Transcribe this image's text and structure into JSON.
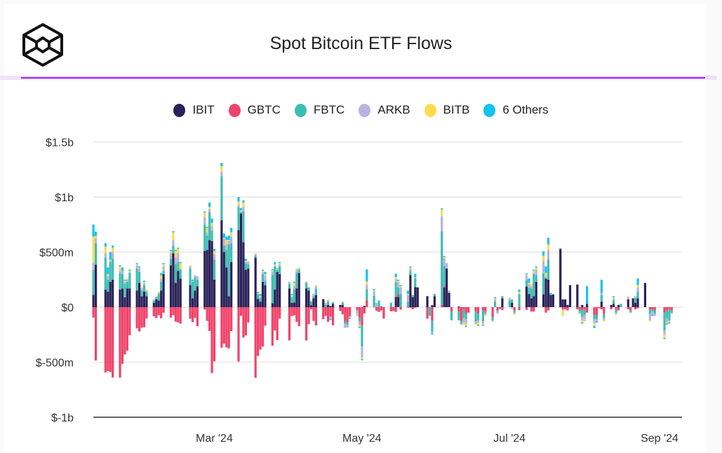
{
  "title": "Spot Bitcoin ETF Flows",
  "logo": "hexagonal-cube-logo",
  "chart_data": {
    "type": "bar",
    "stacked": true,
    "title": "Spot Bitcoin ETF Flows",
    "xlabel": "",
    "ylabel": "",
    "unit": "$m",
    "ylim": [
      -1000,
      1500
    ],
    "yticks": [
      {
        "value": 1500,
        "label": "$1.5b"
      },
      {
        "value": 1000,
        "label": "$1b"
      },
      {
        "value": 500,
        "label": "$500m"
      },
      {
        "value": 0,
        "label": "$0"
      },
      {
        "value": -500,
        "label": "$-500m"
      },
      {
        "value": -1000,
        "label": "$-1b"
      }
    ],
    "xticks": [
      {
        "date": "2024-03-01",
        "label": "Mar '24"
      },
      {
        "date": "2024-05-01",
        "label": "May '24"
      },
      {
        "date": "2024-07-01",
        "label": "Jul '24"
      },
      {
        "date": "2024-09-01",
        "label": "Sep '24"
      }
    ],
    "grid": true,
    "legend_position": "top-center",
    "start_date": "2024-01-11",
    "series": [
      {
        "name": "IBIT",
        "color": "#2a2259"
      },
      {
        "name": "GBTC",
        "color": "#f0436a"
      },
      {
        "name": "FBTC",
        "color": "#3dbdb0"
      },
      {
        "name": "ARKB",
        "color": "#b9b2e0"
      },
      {
        "name": "BITB",
        "color": "#fbdc4f"
      },
      {
        "name": "6 Others",
        "color": "#12c3f0"
      }
    ],
    "rows_order": "one row per weekday from start_date: [IBIT, GBTC, FBTC, ARKB, BITB, 6 Others]",
    "rows": [
      [
        111,
        -95,
        227,
        65,
        237,
        110
      ],
      [
        386,
        -484,
        195,
        45,
        20,
        40
      ],
      [
        0,
        0,
        0,
        0,
        0,
        0
      ],
      [
        160,
        -594,
        290,
        40,
        60,
        30
      ],
      [
        140,
        -580,
        110,
        30,
        20,
        60
      ],
      [
        230,
        -590,
        180,
        10,
        10,
        70
      ],
      [
        250,
        -640,
        190,
        60,
        40,
        20
      ],
      [
        160,
        -640,
        150,
        20,
        40,
        10
      ],
      [
        170,
        -515,
        130,
        30,
        0,
        30
      ],
      [
        90,
        -429,
        120,
        20,
        10,
        10
      ],
      [
        170,
        -394,
        60,
        20,
        10,
        0
      ],
      [
        170,
        -255,
        140,
        10,
        10,
        10
      ],
      [
        150,
        -192,
        200,
        30,
        10,
        10
      ],
      [
        220,
        -221,
        100,
        30,
        10,
        10
      ],
      [
        100,
        -187,
        50,
        20,
        10,
        0
      ],
      [
        140,
        -182,
        60,
        20,
        10,
        10
      ],
      [
        100,
        -104,
        40,
        10,
        10,
        0
      ],
      [
        40,
        -83,
        20,
        10,
        0,
        0
      ],
      [
        70,
        -100,
        20,
        5,
        5,
        0
      ],
      [
        60,
        -73,
        60,
        10,
        10,
        0
      ],
      [
        150,
        -101,
        80,
        30,
        30,
        20
      ],
      [
        300,
        -51,
        30,
        40,
        20,
        10
      ],
      [
        380,
        -95,
        60,
        50,
        20,
        10
      ],
      [
        490,
        -73,
        70,
        50,
        70,
        10
      ],
      [
        220,
        -131,
        170,
        60,
        60,
        10
      ],
      [
        330,
        -139,
        80,
        80,
        40,
        10
      ],
      [
        260,
        -150,
        80,
        10,
        50,
        10
      ],
      [
        0,
        0,
        0,
        0,
        0,
        0
      ],
      [
        200,
        -105,
        150,
        20,
        10,
        0
      ],
      [
        80,
        -136,
        150,
        10,
        0,
        10
      ],
      [
        150,
        -99,
        120,
        20,
        0,
        0
      ],
      [
        190,
        -173,
        60,
        30,
        0,
        0
      ],
      [
        510,
        -22,
        240,
        70,
        40,
        10
      ],
      [
        520,
        -125,
        130,
        30,
        40,
        10
      ],
      [
        610,
        -216,
        250,
        30,
        20,
        40
      ],
      [
        600,
        -599,
        95,
        40,
        30,
        40
      ],
      [
        250,
        -492,
        180,
        50,
        30,
        20
      ],
      [
        790,
        -368,
        400,
        40,
        50,
        30
      ],
      [
        500,
        -332,
        60,
        60,
        10,
        40
      ],
      [
        360,
        -366,
        160,
        50,
        40,
        30
      ],
      [
        100,
        -375,
        470,
        30,
        10,
        40
      ],
      [
        410,
        -217,
        170,
        60,
        40,
        40
      ],
      [
        700,
        -494,
        210,
        20,
        30,
        40
      ],
      [
        850,
        -79,
        10,
        10,
        10,
        20
      ],
      [
        590,
        -276,
        280,
        40,
        40,
        20
      ],
      [
        340,
        -257,
        60,
        10,
        10,
        20
      ],
      [
        350,
        -139,
        40,
        20,
        10,
        0
      ],
      [
        450,
        -642,
        20,
        10,
        10,
        0
      ],
      [
        75,
        -443,
        40,
        10,
        5,
        10
      ],
      [
        50,
        -386,
        30,
        10,
        10,
        20
      ],
      [
        230,
        -358,
        70,
        20,
        10,
        10
      ],
      [
        200,
        -169,
        40,
        50,
        10,
        20
      ],
      [
        35,
        -350,
        260,
        30,
        10,
        10
      ],
      [
        160,
        -212,
        210,
        10,
        10,
        20
      ],
      [
        320,
        -299,
        20,
        5,
        5,
        5
      ],
      [
        300,
        -104,
        70,
        20,
        10,
        10
      ],
      [
        0,
        0,
        0,
        0,
        0,
        0
      ],
      [
        170,
        -302,
        40,
        10,
        5,
        5
      ],
      [
        40,
        -81,
        50,
        10,
        10,
        10
      ],
      [
        42,
        -75,
        120,
        30,
        30,
        10
      ],
      [
        170,
        -133,
        140,
        20,
        10,
        5
      ],
      [
        310,
        -173,
        30,
        10,
        10,
        0
      ],
      [
        170,
        -303,
        50,
        10,
        5,
        0
      ],
      [
        150,
        -154,
        30,
        0,
        0,
        0
      ],
      [
        18,
        -18,
        30,
        10,
        0,
        0
      ],
      [
        80,
        -125,
        20,
        20,
        0,
        0
      ],
      [
        110,
        -166,
        60,
        20,
        10,
        0
      ],
      [
        73,
        -110,
        0,
        0,
        0,
        0
      ],
      [
        0,
        -79,
        20,
        20,
        0,
        0
      ],
      [
        20,
        -133,
        30,
        10,
        10,
        0
      ],
      [
        10,
        -87,
        0,
        -20,
        0,
        -10
      ],
      [
        30,
        -165,
        15,
        0,
        0,
        0
      ],
      [
        20,
        -35,
        0,
        0,
        0,
        0
      ],
      [
        20,
        -66,
        20,
        10,
        0,
        0
      ],
      [
        0,
        -130,
        -20,
        -31,
        0,
        -5
      ],
      [
        0,
        -139,
        -22,
        -25,
        0,
        0
      ],
      [
        0,
        -82,
        0,
        -10,
        -5,
        -10
      ],
      [
        0,
        -25,
        -6,
        -31,
        -10,
        -5
      ],
      [
        0,
        -93,
        -36,
        -30,
        -20,
        -10
      ],
      [
        0,
        -167,
        -191,
        -99,
        -15,
        -10
      ],
      [
        12,
        -54,
        -5,
        0,
        0,
        0
      ],
      [
        0,
        63,
        100,
        40,
        30,
        110
      ],
      [
        0,
        4,
        100,
        40,
        10,
        10
      ],
      [
        0,
        -32,
        0,
        40,
        0,
        0
      ],
      [
        0,
        -44,
        60,
        0,
        0,
        0
      ],
      [
        0,
        -30,
        10,
        0,
        0,
        0
      ],
      [
        0,
        -104,
        0,
        0,
        0,
        0
      ],
      [
        0,
        -38,
        40,
        0,
        0,
        0
      ],
      [
        0,
        -35,
        0,
        0,
        0,
        0
      ],
      [
        93,
        -43,
        131,
        30,
        20,
        30
      ],
      [
        94,
        25,
        60,
        50,
        10,
        10
      ],
      [
        0,
        -23,
        120,
        60,
        10,
        10
      ],
      [
        0,
        -5,
        50,
        60,
        10,
        30
      ],
      [
        290,
        -5,
        40,
        20,
        10,
        10
      ],
      [
        89,
        -19,
        20,
        0,
        0,
        0
      ],
      [
        183,
        -5,
        80,
        10,
        0,
        30
      ],
      [
        180,
        0,
        0,
        0,
        0,
        0
      ],
      [
        0,
        0,
        0,
        0,
        0,
        0
      ],
      [
        100,
        -105,
        0,
        0,
        0,
        0
      ],
      [
        0,
        0,
        -80,
        0,
        0,
        0
      ],
      [
        18,
        -124,
        -100,
        -15,
        0,
        -10
      ],
      [
        100,
        0,
        20,
        0,
        0,
        0
      ],
      [
        0,
        20,
        670,
        137,
        60,
        10
      ],
      [
        180,
        15,
        180,
        70,
        10,
        10
      ],
      [
        350,
        0,
        0,
        50,
        0,
        0
      ],
      [
        130,
        0,
        0,
        20,
        0,
        0
      ],
      [
        0,
        -40,
        -80,
        0,
        0,
        0
      ],
      [
        6,
        -40,
        -80,
        0,
        0,
        0
      ],
      [
        0,
        -121,
        -30,
        -10,
        0,
        0
      ],
      [
        0,
        -20,
        -80,
        -40,
        -20,
        0
      ],
      [
        0,
        -60,
        -50,
        -40,
        -20,
        -10
      ],
      [
        0,
        -50,
        0,
        0,
        0,
        0
      ],
      [
        0,
        -40,
        -90,
        -20,
        -10,
        0
      ],
      [
        0,
        -60,
        -60,
        -20,
        -20,
        -10
      ],
      [
        0,
        0,
        0,
        0,
        0,
        0
      ],
      [
        0,
        -30,
        -100,
        -20,
        -10,
        -10
      ],
      [
        0,
        -40,
        -20,
        -10,
        -10,
        0
      ],
      [
        0,
        -90,
        -30,
        -10,
        0,
        0
      ],
      [
        0,
        0,
        50,
        20,
        10,
        10
      ],
      [
        0,
        -30,
        -10,
        -20,
        0,
        0
      ],
      [
        0,
        -10,
        -10,
        0,
        0,
        0
      ],
      [
        80,
        -27,
        20,
        0,
        0,
        0
      ],
      [
        0,
        0,
        60,
        20,
        10,
        0
      ],
      [
        40,
        0,
        30,
        -10,
        -10,
        0
      ],
      [
        0,
        -30,
        -20,
        -10,
        -10,
        0
      ],
      [
        0,
        0,
        0,
        0,
        0,
        0
      ],
      [
        0,
        -28,
        120,
        0,
        20,
        20
      ],
      [
        187,
        -25,
        60,
        40,
        10,
        10
      ],
      [
        120,
        0,
        60,
        30,
        10,
        40
      ],
      [
        80,
        -40,
        90,
        20,
        20,
        0
      ],
      [
        100,
        -40,
        200,
        10,
        20,
        10
      ],
      [
        230,
        0,
        60,
        50,
        20,
        10
      ],
      [
        117,
        0,
        190,
        110,
        50,
        40
      ],
      [
        260,
        -50,
        0,
        20,
        30,
        60
      ],
      [
        250,
        -30,
        180,
        90,
        50,
        60
      ],
      [
        110,
        0,
        20,
        0,
        0,
        0
      ],
      [
        116,
        0,
        0,
        0,
        0,
        0
      ],
      [
        526,
        0,
        10,
        0,
        0,
        0
      ],
      [
        70,
        -20,
        0,
        -10,
        -50,
        0
      ],
      [
        70,
        -20,
        0,
        0,
        0,
        0
      ],
      [
        20,
        -30,
        0,
        0,
        0,
        0
      ],
      [
        200,
        0,
        0,
        0,
        0,
        0
      ],
      [
        205,
        -20,
        0,
        0,
        0,
        0
      ],
      [
        0,
        -20,
        -30,
        -10,
        0,
        0
      ],
      [
        20,
        -30,
        -60,
        -30,
        -20,
        -10
      ],
      [
        0,
        -20,
        -50,
        -40,
        -10,
        -5
      ],
      [
        30,
        -50,
        0,
        0,
        0,
        160
      ],
      [
        0,
        -70,
        -40,
        -40,
        -20,
        -20
      ],
      [
        0,
        -70,
        -40,
        -20,
        0,
        -10
      ],
      [
        0,
        -10,
        0,
        0,
        0,
        0
      ],
      [
        50,
        -20,
        60,
        20,
        0,
        120
      ],
      [
        0,
        -60,
        -40,
        -20,
        -10,
        0
      ],
      [
        20,
        -20,
        0,
        0,
        0,
        0
      ],
      [
        30,
        0,
        30,
        20,
        10,
        10
      ],
      [
        0,
        -20,
        -30,
        -10,
        -10,
        0
      ],
      [
        20,
        -30,
        0,
        0,
        0,
        0
      ],
      [
        0,
        0,
        30,
        0,
        0,
        0
      ],
      [
        70,
        -20,
        0,
        20,
        10,
        0
      ],
      [
        0,
        -30,
        -20,
        0,
        0,
        0
      ],
      [
        80,
        0,
        0,
        0,
        0,
        0
      ],
      [
        40,
        -20,
        40,
        20,
        0,
        0
      ],
      [
        80,
        -10,
        60,
        40,
        20,
        60
      ],
      [
        220,
        0,
        0,
        0,
        0,
        0
      ],
      [
        0,
        0,
        0,
        0,
        0,
        0
      ],
      [
        0,
        -20,
        -40,
        -60,
        -10,
        0
      ],
      [
        0,
        -20,
        -20,
        -30,
        0,
        -10
      ],
      [
        0,
        -30,
        -30,
        -20,
        0,
        0
      ],
      [
        0,
        0,
        0,
        0,
        0,
        0
      ],
      [
        0,
        -50,
        -160,
        -40,
        -30,
        -10
      ],
      [
        0,
        -30,
        -70,
        -40,
        -10,
        -10
      ],
      [
        0,
        -20,
        -100,
        -10,
        -10,
        -10
      ],
      [
        0,
        -30,
        -20,
        -10,
        0,
        0
      ]
    ]
  }
}
